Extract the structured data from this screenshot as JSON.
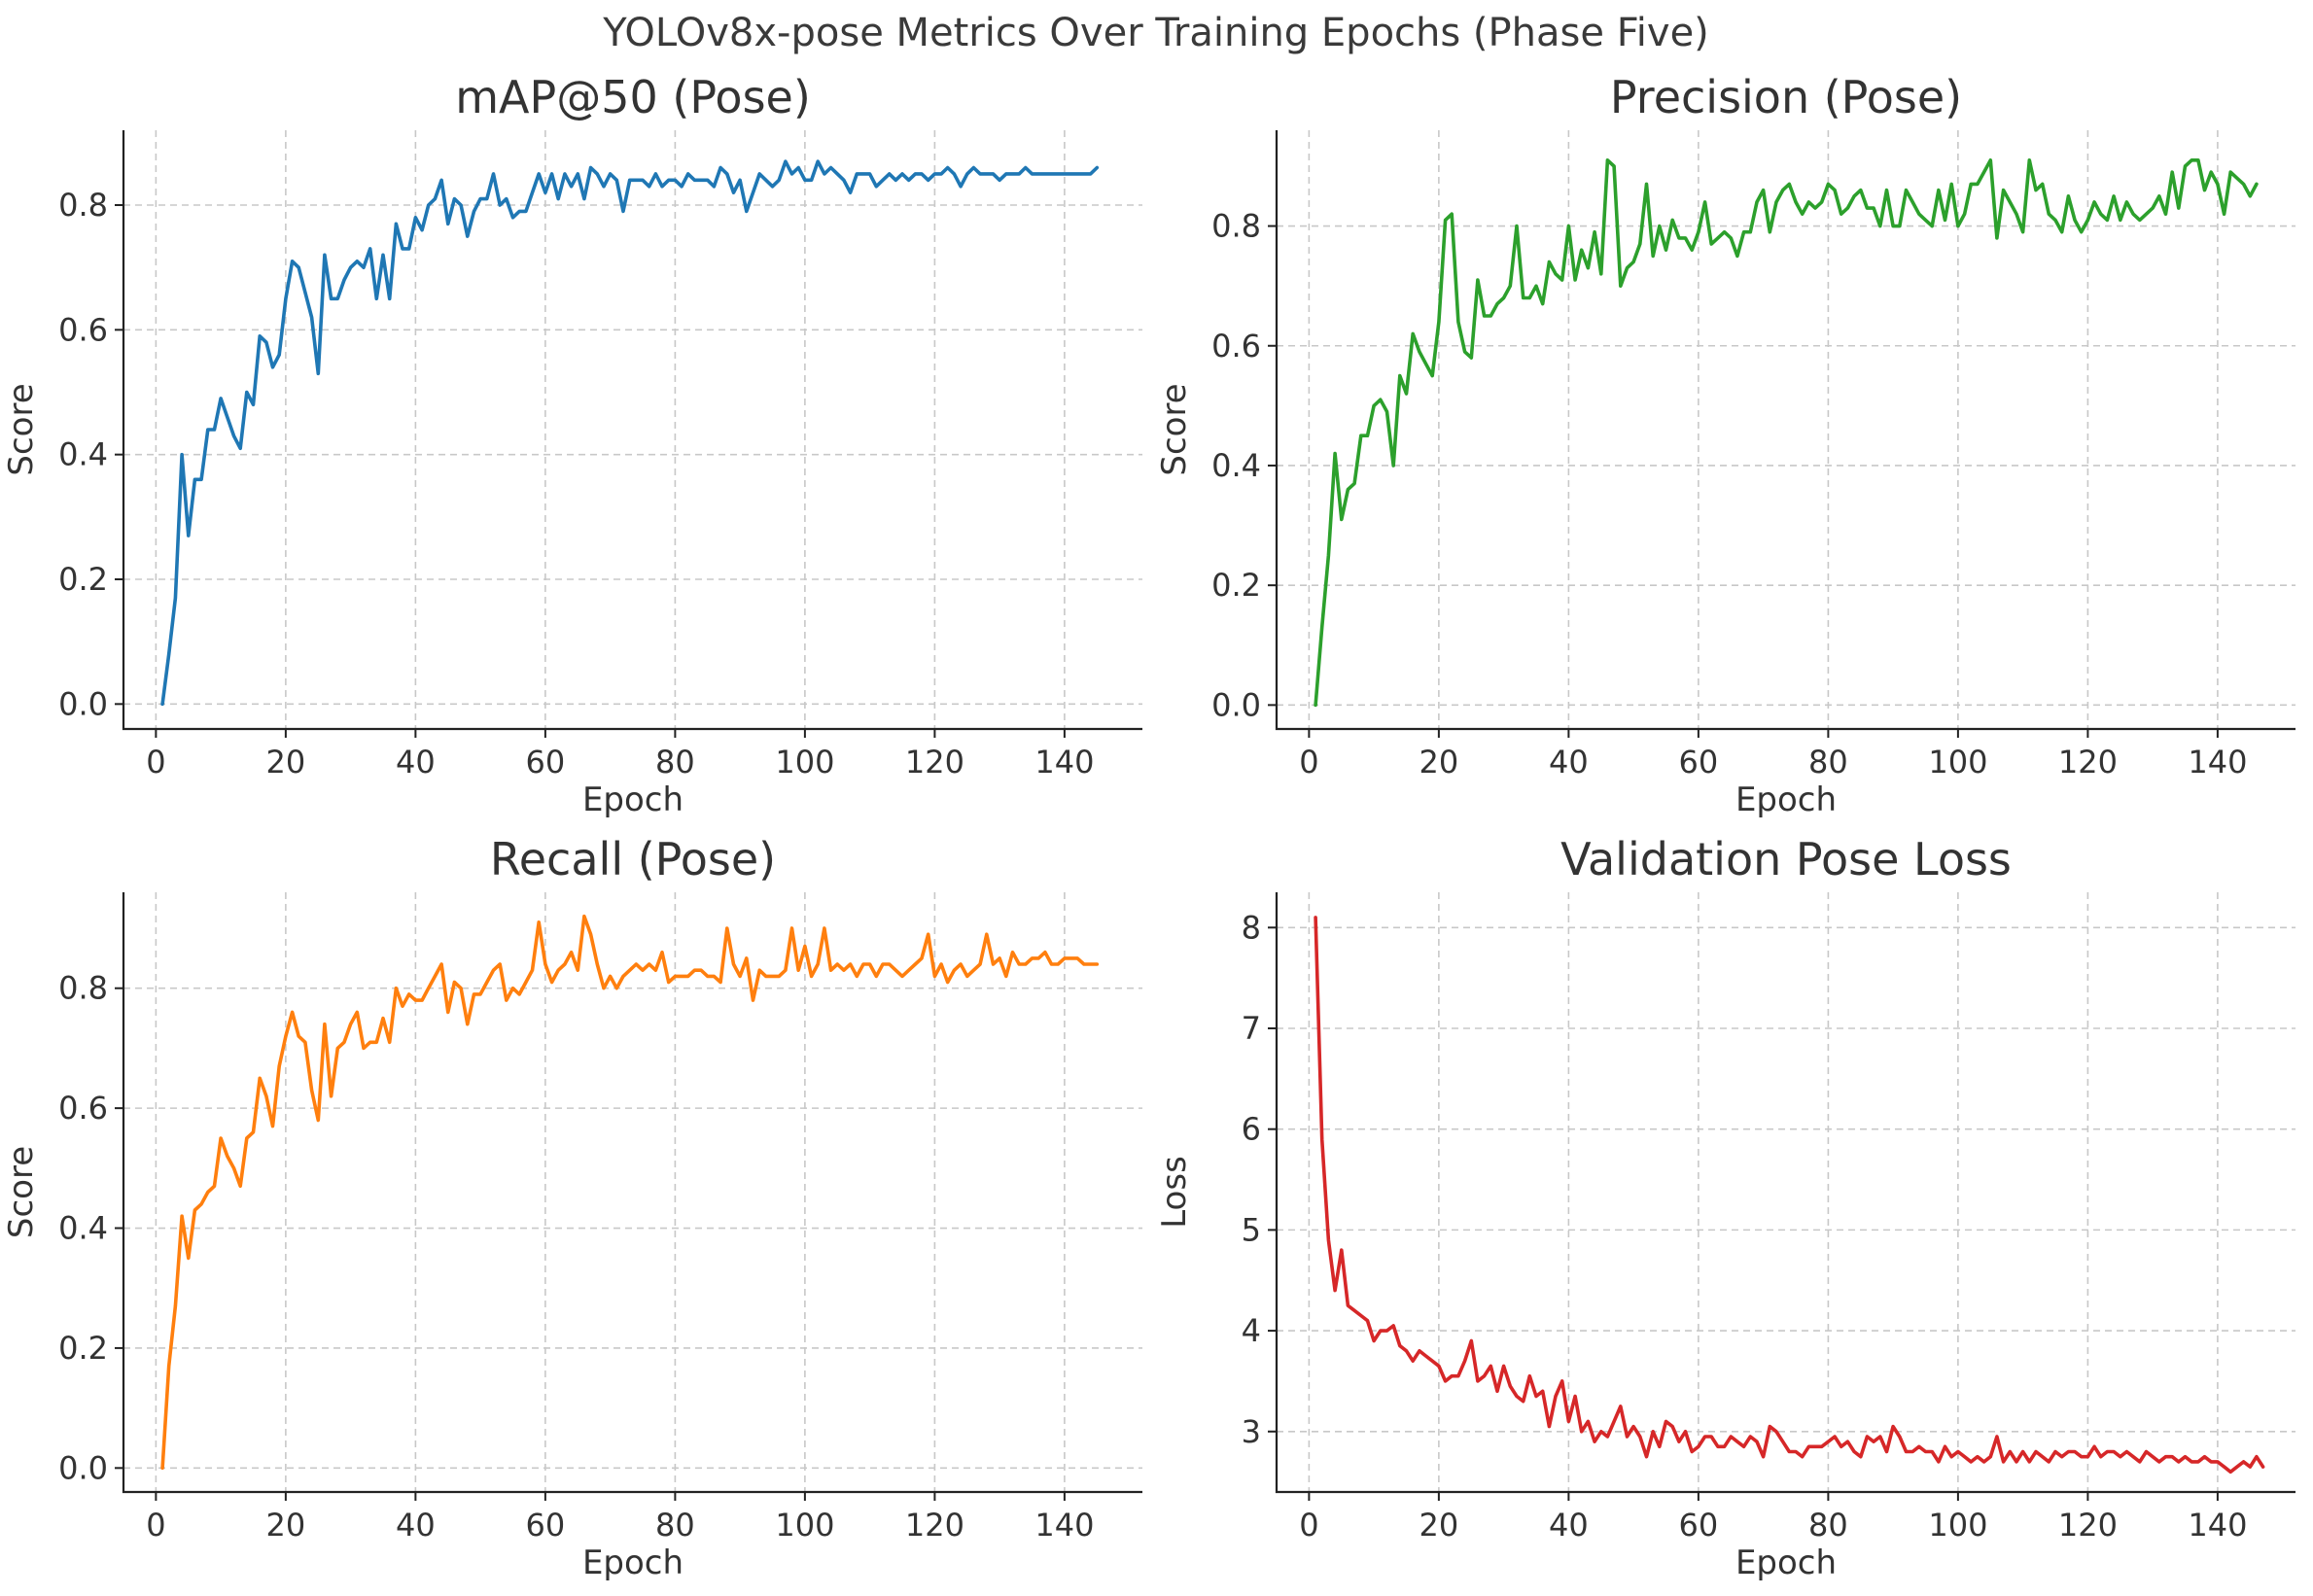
{
  "title": "YOLOv8x-pose Metrics Over Training Epochs (Phase Five)",
  "chart_data": [
    {
      "type": "line",
      "title": "mAP@50 (Pose)",
      "xlabel": "Epoch",
      "ylabel": "Score",
      "color": "#1f77b4",
      "xlim": [
        -5,
        152
      ],
      "ylim": [
        -0.04,
        0.92
      ],
      "xticks": [
        "0",
        "20",
        "40",
        "60",
        "80",
        "100",
        "120",
        "140"
      ],
      "yticks": [
        "0.0",
        "0.2",
        "0.4",
        "0.6",
        "0.8"
      ],
      "grid": true,
      "x_start": 1,
      "values": [
        0.0,
        0.08,
        0.17,
        0.4,
        0.27,
        0.36,
        0.36,
        0.44,
        0.44,
        0.49,
        0.46,
        0.43,
        0.41,
        0.5,
        0.48,
        0.59,
        0.58,
        0.54,
        0.56,
        0.65,
        0.71,
        0.7,
        0.66,
        0.62,
        0.53,
        0.72,
        0.65,
        0.65,
        0.68,
        0.7,
        0.71,
        0.7,
        0.73,
        0.65,
        0.72,
        0.65,
        0.77,
        0.73,
        0.73,
        0.78,
        0.76,
        0.8,
        0.81,
        0.84,
        0.77,
        0.81,
        0.8,
        0.75,
        0.79,
        0.81,
        0.81,
        0.85,
        0.8,
        0.81,
        0.78,
        0.79,
        0.79,
        0.82,
        0.85,
        0.82,
        0.85,
        0.81,
        0.85,
        0.83,
        0.85,
        0.81,
        0.86,
        0.85,
        0.83,
        0.85,
        0.84,
        0.79,
        0.84,
        0.84,
        0.84,
        0.83,
        0.85,
        0.83,
        0.84,
        0.84,
        0.83,
        0.85,
        0.84,
        0.84,
        0.84,
        0.83,
        0.86,
        0.85,
        0.82,
        0.84,
        0.79,
        0.82,
        0.85,
        0.84,
        0.83,
        0.84,
        0.87,
        0.85,
        0.86,
        0.84,
        0.84,
        0.87,
        0.85,
        0.86,
        0.85,
        0.84,
        0.82,
        0.85,
        0.85,
        0.85,
        0.83,
        0.84,
        0.85,
        0.84,
        0.85,
        0.84,
        0.85,
        0.85,
        0.84,
        0.85,
        0.85,
        0.86,
        0.85,
        0.83,
        0.85,
        0.86,
        0.85,
        0.85,
        0.85,
        0.84,
        0.85,
        0.85,
        0.85,
        0.86,
        0.85,
        0.85,
        0.85,
        0.85,
        0.85,
        0.85,
        0.85,
        0.85,
        0.85,
        0.85,
        0.86
      ]
    },
    {
      "type": "line",
      "title": "Precision (Pose)",
      "xlabel": "Epoch",
      "ylabel": "Score",
      "color": "#2ca02c",
      "xlim": [
        -5,
        152
      ],
      "ylim": [
        -0.04,
        0.96
      ],
      "xticks": [
        "0",
        "20",
        "40",
        "60",
        "80",
        "100",
        "120",
        "140"
      ],
      "yticks": [
        "0.0",
        "0.2",
        "0.4",
        "0.6",
        "0.8"
      ],
      "grid": true,
      "x_start": 1,
      "values": [
        0.0,
        0.13,
        0.25,
        0.42,
        0.31,
        0.36,
        0.37,
        0.45,
        0.45,
        0.5,
        0.51,
        0.49,
        0.4,
        0.55,
        0.52,
        0.62,
        0.59,
        0.57,
        0.55,
        0.64,
        0.81,
        0.82,
        0.64,
        0.59,
        0.58,
        0.71,
        0.65,
        0.65,
        0.67,
        0.68,
        0.7,
        0.8,
        0.68,
        0.68,
        0.7,
        0.67,
        0.74,
        0.72,
        0.71,
        0.8,
        0.71,
        0.76,
        0.73,
        0.79,
        0.72,
        0.91,
        0.9,
        0.7,
        0.73,
        0.74,
        0.77,
        0.87,
        0.75,
        0.8,
        0.76,
        0.81,
        0.78,
        0.78,
        0.76,
        0.79,
        0.84,
        0.77,
        0.78,
        0.79,
        0.78,
        0.75,
        0.79,
        0.79,
        0.84,
        0.86,
        0.79,
        0.84,
        0.86,
        0.87,
        0.84,
        0.82,
        0.84,
        0.83,
        0.84,
        0.87,
        0.86,
        0.82,
        0.83,
        0.85,
        0.86,
        0.83,
        0.83,
        0.8,
        0.86,
        0.8,
        0.8,
        0.86,
        0.84,
        0.82,
        0.81,
        0.8,
        0.86,
        0.81,
        0.87,
        0.8,
        0.82,
        0.87,
        0.87,
        0.89,
        0.91,
        0.78,
        0.86,
        0.84,
        0.82,
        0.79,
        0.91,
        0.86,
        0.87,
        0.82,
        0.81,
        0.79,
        0.85,
        0.81,
        0.79,
        0.81,
        0.84,
        0.82,
        0.81,
        0.85,
        0.81,
        0.84,
        0.82,
        0.81,
        0.82,
        0.83,
        0.85,
        0.82,
        0.89,
        0.83,
        0.9,
        0.91,
        0.91,
        0.86,
        0.89,
        0.87,
        0.82,
        0.89,
        0.88,
        0.87,
        0.85,
        0.87
      ]
    },
    {
      "type": "line",
      "title": "Recall (Pose)",
      "xlabel": "Epoch",
      "ylabel": "Score",
      "color": "#ff7f0e",
      "xlim": [
        -5,
        152
      ],
      "ylim": [
        -0.04,
        0.96
      ],
      "xticks": [
        "0",
        "20",
        "40",
        "60",
        "80",
        "100",
        "120",
        "140"
      ],
      "yticks": [
        "0.0",
        "0.2",
        "0.4",
        "0.6",
        "0.8"
      ],
      "grid": true,
      "x_start": 1,
      "values": [
        0.0,
        0.17,
        0.27,
        0.42,
        0.35,
        0.43,
        0.44,
        0.46,
        0.47,
        0.55,
        0.52,
        0.5,
        0.47,
        0.55,
        0.56,
        0.65,
        0.62,
        0.57,
        0.67,
        0.72,
        0.76,
        0.72,
        0.71,
        0.63,
        0.58,
        0.74,
        0.62,
        0.7,
        0.71,
        0.74,
        0.76,
        0.7,
        0.71,
        0.71,
        0.75,
        0.71,
        0.8,
        0.77,
        0.79,
        0.78,
        0.78,
        0.8,
        0.82,
        0.84,
        0.76,
        0.81,
        0.8,
        0.74,
        0.79,
        0.79,
        0.81,
        0.83,
        0.84,
        0.78,
        0.8,
        0.79,
        0.81,
        0.83,
        0.91,
        0.84,
        0.81,
        0.83,
        0.84,
        0.86,
        0.83,
        0.92,
        0.89,
        0.84,
        0.8,
        0.82,
        0.8,
        0.82,
        0.83,
        0.84,
        0.83,
        0.84,
        0.83,
        0.86,
        0.81,
        0.82,
        0.82,
        0.82,
        0.83,
        0.83,
        0.82,
        0.82,
        0.81,
        0.9,
        0.84,
        0.82,
        0.85,
        0.78,
        0.83,
        0.82,
        0.82,
        0.82,
        0.83,
        0.9,
        0.83,
        0.87,
        0.82,
        0.84,
        0.9,
        0.83,
        0.84,
        0.83,
        0.84,
        0.82,
        0.84,
        0.84,
        0.82,
        0.84,
        0.84,
        0.83,
        0.82,
        0.83,
        0.84,
        0.85,
        0.89,
        0.82,
        0.84,
        0.81,
        0.83,
        0.84,
        0.82,
        0.83,
        0.84,
        0.89,
        0.84,
        0.85,
        0.82,
        0.86,
        0.84,
        0.84,
        0.85,
        0.85,
        0.86,
        0.84,
        0.84,
        0.85,
        0.85,
        0.85,
        0.84,
        0.84,
        0.84
      ]
    },
    {
      "type": "line",
      "title": "Validation Pose Loss",
      "xlabel": "Epoch",
      "ylabel": "Loss",
      "color": "#d62728",
      "xlim": [
        -5,
        152
      ],
      "ylim": [
        2.4,
        8.35
      ],
      "xticks": [
        "0",
        "20",
        "40",
        "60",
        "80",
        "100",
        "120",
        "140"
      ],
      "yticks": [
        "3",
        "4",
        "5",
        "6",
        "7",
        "8"
      ],
      "grid": true,
      "x_start": 1,
      "values": [
        8.1,
        5.9,
        4.9,
        4.4,
        4.8,
        4.25,
        4.2,
        4.15,
        4.1,
        3.9,
        4.0,
        4.0,
        4.05,
        3.85,
        3.8,
        3.7,
        3.8,
        3.75,
        3.7,
        3.65,
        3.5,
        3.55,
        3.55,
        3.7,
        3.9,
        3.5,
        3.55,
        3.65,
        3.4,
        3.65,
        3.45,
        3.35,
        3.3,
        3.55,
        3.35,
        3.4,
        3.05,
        3.35,
        3.5,
        3.1,
        3.35,
        3.0,
        3.1,
        2.9,
        3.0,
        2.95,
        3.1,
        3.25,
        2.95,
        3.05,
        2.95,
        2.75,
        3.0,
        2.85,
        3.1,
        3.05,
        2.9,
        3.0,
        2.8,
        2.85,
        2.95,
        2.95,
        2.85,
        2.85,
        2.95,
        2.9,
        2.85,
        2.95,
        2.9,
        2.75,
        3.05,
        3.0,
        2.9,
        2.8,
        2.8,
        2.75,
        2.85,
        2.85,
        2.85,
        2.9,
        2.95,
        2.85,
        2.9,
        2.8,
        2.75,
        2.95,
        2.9,
        2.95,
        2.8,
        3.05,
        2.95,
        2.8,
        2.8,
        2.85,
        2.8,
        2.8,
        2.7,
        2.85,
        2.75,
        2.8,
        2.75,
        2.7,
        2.75,
        2.7,
        2.75,
        2.95,
        2.7,
        2.8,
        2.7,
        2.8,
        2.7,
        2.8,
        2.75,
        2.7,
        2.8,
        2.75,
        2.8,
        2.8,
        2.75,
        2.75,
        2.85,
        2.75,
        2.8,
        2.8,
        2.75,
        2.8,
        2.75,
        2.7,
        2.8,
        2.75,
        2.7,
        2.75,
        2.75,
        2.7,
        2.75,
        2.7,
        2.7,
        2.75,
        2.7,
        2.7,
        2.65,
        2.6,
        2.65,
        2.7,
        2.65,
        2.75,
        2.65
      ]
    }
  ]
}
